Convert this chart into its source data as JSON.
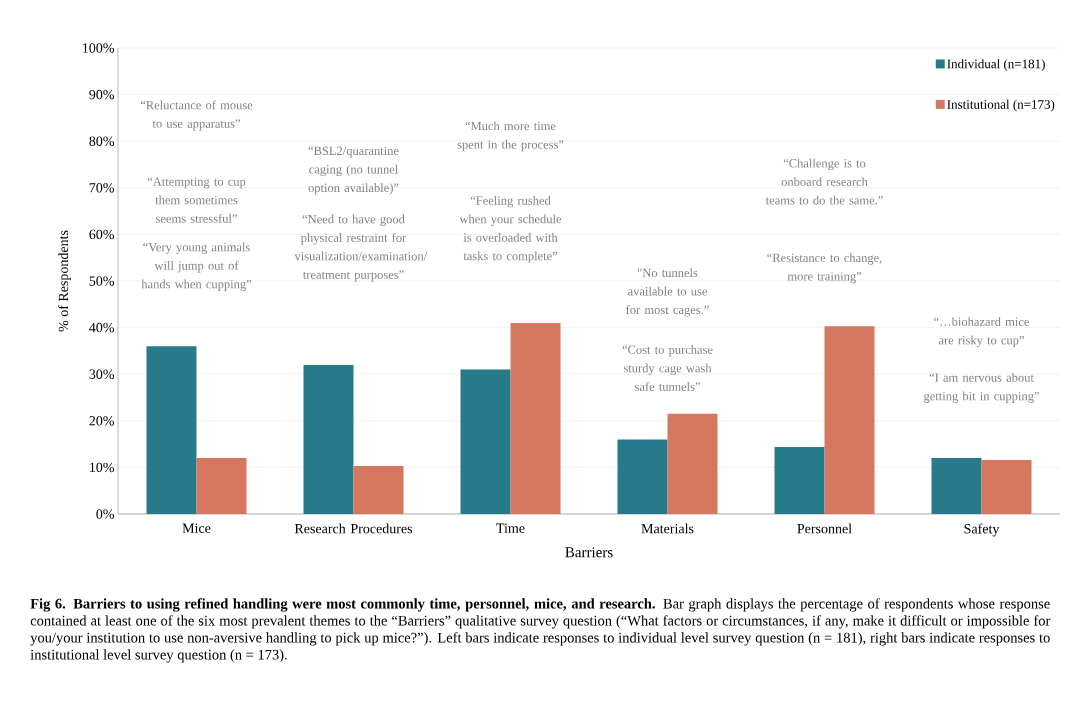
{
  "chart_data": {
    "type": "bar",
    "xlabel": "Barriers",
    "ylabel": "% of Respondents",
    "categories": [
      "Mice",
      "Research Procedures",
      "Time",
      "Materials",
      "Personnel",
      "Safety"
    ],
    "series": [
      {
        "name": "Individual (n=181)",
        "color": "#267a8a",
        "values": [
          36,
          32,
          31,
          16,
          14.4,
          12
        ]
      },
      {
        "name": "Institutional (n=173)",
        "color": "#d6775f",
        "values": [
          12,
          10.3,
          41,
          21.5,
          40.3,
          11.6
        ]
      }
    ],
    "ylim": [
      0,
      100
    ],
    "yticks": [
      {
        "value": 0,
        "label": "0%"
      },
      {
        "value": 10,
        "label": "10%"
      },
      {
        "value": 20,
        "label": "20%"
      },
      {
        "value": 30,
        "label": "30%"
      },
      {
        "value": 40,
        "label": "40%"
      },
      {
        "value": 50,
        "label": "50%"
      },
      {
        "value": 60,
        "label": "60%"
      },
      {
        "value": 70,
        "label": "70%"
      },
      {
        "value": 80,
        "label": "80%"
      },
      {
        "value": 90,
        "label": "90%"
      },
      {
        "value": 100,
        "label": "100%"
      }
    ],
    "grid": "y",
    "legend": "top right",
    "annotations": [
      "“Reluctance of mouse to use apparatus”",
      "“Attempting to cup them sometimes seems stressful”",
      "“Very young animals will jump out of hands when cupping”",
      "“BSL2/quarantine caging (no tunnel option available)”",
      "“Need to have good physical restraint for visualization/examination/ treatment purposes”",
      "“Much more time spent in the process”",
      "“Feeling rushed when your schedule is overloaded with tasks to complete”",
      "\"No tunnels available to use for most cages.”",
      "“Cost to purchase sturdy cage wash safe tunnels”",
      "“Challenge is to onboard research teams to do the same.”",
      "“Resistance to change, more training”",
      "“…biohazard mice are risky to cup”",
      "“I am nervous about getting bit in cupping”",
      "**Fig 6. Barriers to using refined handling were most commonly time, personnel, mice, and research.** Bar graph displays the percentage of respondents whose response contained at least one of the six most prevalent themes to the “Barriers” qualitative survey question (“What factors or circumstances, if any, make it difficult or impossible for you/your institution to use non-aversive handling to pick up mice?”). Left bars indicate responses to individual level survey question (n = 181), right bars indicate responses to institutional level survey question (n = 173)."
    ]
  }
}
